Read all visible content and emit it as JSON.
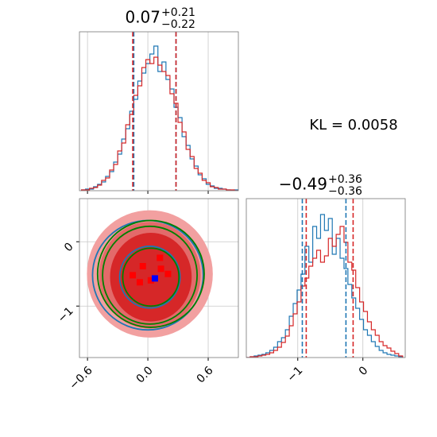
{
  "chart_data": [
    {
      "type": "histogram",
      "title": {
        "value": "0.07",
        "upper": "+0.21",
        "lower": "−0.22"
      },
      "bins": [
        -0.66,
        -0.62,
        -0.58,
        -0.54,
        -0.5,
        -0.46,
        -0.42,
        -0.38,
        -0.34,
        -0.3,
        -0.26,
        -0.22,
        -0.18,
        -0.14,
        -0.1,
        -0.06,
        -0.02,
        0.02,
        0.06,
        0.1,
        0.14,
        0.18,
        0.22,
        0.26,
        0.3,
        0.34,
        0.38,
        0.42,
        0.46,
        0.5,
        0.54,
        0.58,
        0.62,
        0.66,
        0.7,
        0.74,
        0.78,
        0.82,
        0.86,
        0.9
      ],
      "series": [
        {
          "color": "#1f77b4",
          "values": [
            1,
            2,
            2,
            5,
            8,
            11,
            18,
            24,
            36,
            46,
            65,
            78,
            100,
            115,
            138,
            148,
            160,
            172,
            182,
            150,
            162,
            140,
            128,
            105,
            92,
            68,
            57,
            40,
            31,
            20,
            15,
            8,
            6,
            3,
            3,
            2,
            1,
            0,
            1
          ],
          "quantiles": [
            -0.14,
            0.28
          ]
        },
        {
          "color": "#d62728",
          "values": [
            1,
            1,
            3,
            4,
            7,
            13,
            16,
            26,
            33,
            50,
            60,
            83,
            96,
            120,
            132,
            155,
            165,
            160,
            168,
            158,
            150,
            145,
            122,
            110,
            86,
            74,
            52,
            43,
            28,
            22,
            13,
            10,
            5,
            4,
            2,
            2,
            1,
            1,
            0
          ],
          "quantiles": [
            -0.15,
            0.28
          ]
        }
      ],
      "xlim": [
        -0.68,
        0.9
      ],
      "ylim": [
        0,
        200
      ],
      "xticks": [
        -0.6,
        0,
        0.6
      ],
      "grid": true
    },
    {
      "type": "contour",
      "xlim": [
        -0.68,
        0.9
      ],
      "ylim": [
        -1.8,
        0.67
      ],
      "xticks": [
        {
          "value": -0.6,
          "label": "−0.6"
        },
        {
          "value": 0,
          "label": "0.0"
        },
        {
          "value": 0.6,
          "label": "0.6"
        }
      ],
      "yticks": [
        0,
        {
          "value": -1,
          "label": "−1"
        }
      ],
      "grid": true,
      "fills": [
        {
          "color": "#f2a0a0",
          "cx": 0.02,
          "cy": -0.5,
          "rx": 0.62,
          "ry": 0.98
        },
        {
          "color": "#e36a6a",
          "cx": 0.02,
          "cy": -0.52,
          "rx": 0.5,
          "ry": 0.82
        },
        {
          "color": "#d62728",
          "cx": 0.03,
          "cy": -0.55,
          "rx": 0.4,
          "ry": 0.68
        }
      ],
      "series": [
        {
          "color": "#1f77b4",
          "contours": [
            {
              "cx": 0.0,
              "cy": -0.52,
              "rx": 0.55,
              "ry": 0.85
            },
            {
              "cx": 0.02,
              "cy": -0.55,
              "rx": 0.3,
              "ry": 0.48
            }
          ]
        },
        {
          "color": "#008000",
          "contours": [
            {
              "cx": 0.02,
              "cy": -0.52,
              "rx": 0.47,
              "ry": 0.76
            },
            {
              "cx": 0.03,
              "cy": -0.5,
              "rx": 0.53,
              "ry": 0.83
            },
            {
              "cx": 0.03,
              "cy": -0.55,
              "rx": 0.28,
              "ry": 0.45
            }
          ]
        }
      ],
      "points": {
        "color": "#ff0000",
        "x": [
          0.12,
          -0.05,
          0.2,
          -0.15,
          0.03,
          0.13,
          -0.08
        ],
        "y": [
          -0.25,
          -0.38,
          -0.5,
          -0.52,
          -0.6,
          -0.42,
          -0.63
        ]
      },
      "center": {
        "color": "#0000ff",
        "x": 0.07,
        "y": -0.57
      }
    },
    {
      "type": "histogram",
      "title": {
        "value": "−0.49",
        "upper": "+0.36",
        "lower": "−0.36"
      },
      "bins": [
        -1.79,
        -1.73,
        -1.67,
        -1.61,
        -1.55,
        -1.49,
        -1.43,
        -1.37,
        -1.31,
        -1.25,
        -1.19,
        -1.13,
        -1.07,
        -1.01,
        -0.95,
        -0.89,
        -0.83,
        -0.77,
        -0.71,
        -0.65,
        -0.59,
        -0.53,
        -0.47,
        -0.41,
        -0.35,
        -0.29,
        -0.23,
        -0.17,
        -0.11,
        -0.05,
        0.01,
        0.07,
        0.13,
        0.19,
        0.25,
        0.31,
        0.37,
        0.43,
        0.49,
        0.55,
        0.61
      ],
      "series": [
        {
          "color": "#1f77b4",
          "values": [
            0,
            1,
            2,
            3,
            4,
            6,
            9,
            13,
            20,
            25,
            35,
            52,
            68,
            85,
            105,
            140,
            120,
            165,
            150,
            180,
            160,
            175,
            130,
            150,
            125,
            112,
            92,
            75,
            62,
            48,
            35,
            28,
            20,
            14,
            9,
            6,
            4,
            3,
            2,
            1
          ],
          "quantiles": [
            -0.93,
            -0.26
          ]
        },
        {
          "color": "#d62728",
          "values": [
            0,
            1,
            1,
            2,
            3,
            4,
            6,
            9,
            13,
            19,
            27,
            40,
            55,
            70,
            90,
            100,
            115,
            125,
            135,
            120,
            128,
            150,
            140,
            155,
            165,
            145,
            120,
            110,
            88,
            70,
            58,
            45,
            35,
            28,
            20,
            15,
            12,
            8,
            5,
            2
          ],
          "quantiles": [
            -0.87,
            -0.15
          ]
        }
      ],
      "xlim": [
        -1.79,
        0.65
      ],
      "ylim": [
        0,
        200
      ],
      "xticks": [
        {
          "value": -1,
          "label": "−1"
        },
        0
      ],
      "grid": true
    }
  ],
  "annotation": "KL = 0.0058"
}
